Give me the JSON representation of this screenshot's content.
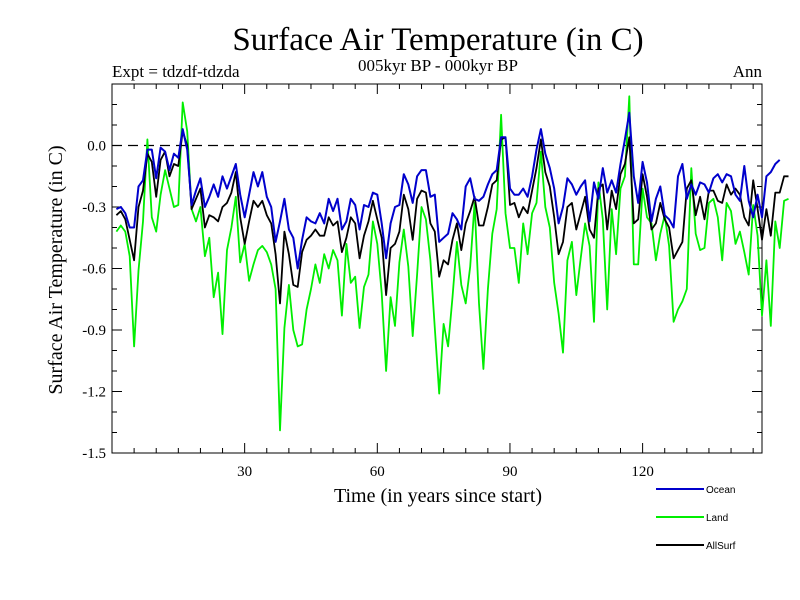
{
  "colors": {
    "ocean": "#0000cc",
    "land": "#00ee00",
    "allsurf": "#000000",
    "axis": "#000000",
    "zero_line": "#000000"
  },
  "chart_data": {
    "type": "line",
    "title": "Surface Air Temperature (in C)",
    "subtitle_left": "Expt = tdzdf-tdzda",
    "subtitle_center": "005kyr BP - 000kyr BP",
    "subtitle_right": "Ann",
    "xlabel": "Time (in years since start)",
    "ylabel": "Surface Air Temperature (in C)",
    "xlim": [
      0,
      147
    ],
    "ylim": [
      -1.5,
      0.3
    ],
    "xticks": [
      30,
      60,
      90,
      120
    ],
    "xtick_labels": [
      "30",
      "60",
      "90",
      "120"
    ],
    "yticks": [
      -1.5,
      -1.2,
      -0.9,
      -0.6,
      -0.3,
      0.0
    ],
    "ytick_labels": [
      "-1.5",
      "-1.2",
      "-0.9",
      "-0.6",
      "-0.3",
      "0.0"
    ],
    "reference_line": 0.0,
    "series": [
      {
        "name": "Ocean",
        "color_key": "ocean",
        "values": [
          -0.31,
          -0.3,
          -0.33,
          -0.4,
          -0.4,
          -0.2,
          -0.17,
          -0.02,
          -0.02,
          -0.16,
          -0.01,
          -0.03,
          -0.12,
          -0.04,
          -0.06,
          0.08,
          -0.02,
          -0.29,
          -0.22,
          -0.16,
          -0.3,
          -0.25,
          -0.19,
          -0.25,
          -0.15,
          -0.21,
          -0.15,
          -0.09,
          -0.24,
          -0.35,
          -0.24,
          -0.13,
          -0.2,
          -0.13,
          -0.25,
          -0.3,
          -0.47,
          -0.37,
          -0.26,
          -0.41,
          -0.45,
          -0.6,
          -0.46,
          -0.35,
          -0.37,
          -0.38,
          -0.33,
          -0.38,
          -0.26,
          -0.32,
          -0.26,
          -0.41,
          -0.37,
          -0.26,
          -0.29,
          -0.41,
          -0.29,
          -0.3,
          -0.23,
          -0.24,
          -0.38,
          -0.55,
          -0.38,
          -0.3,
          -0.29,
          -0.14,
          -0.19,
          -0.28,
          -0.15,
          -0.12,
          -0.12,
          -0.25,
          -0.24,
          -0.47,
          -0.45,
          -0.43,
          -0.33,
          -0.36,
          -0.41,
          -0.2,
          -0.16,
          -0.26,
          -0.27,
          -0.25,
          -0.19,
          -0.14,
          -0.12,
          0.04,
          0.04,
          -0.21,
          -0.24,
          -0.24,
          -0.21,
          -0.25,
          -0.15,
          -0.02,
          0.08,
          -0.04,
          -0.11,
          -0.21,
          -0.38,
          -0.3,
          -0.16,
          -0.19,
          -0.24,
          -0.2,
          -0.17,
          -0.37,
          -0.18,
          -0.26,
          -0.11,
          -0.23,
          -0.17,
          -0.23,
          -0.09,
          0.03,
          0.16,
          -0.15,
          -0.28,
          -0.08,
          -0.18,
          -0.37,
          -0.26,
          -0.2,
          -0.34,
          -0.36,
          -0.4,
          -0.15,
          -0.09,
          -0.26,
          -0.19,
          -0.24,
          -0.18,
          -0.19,
          -0.23,
          -0.16,
          -0.14,
          -0.18,
          -0.14,
          -0.15,
          -0.24,
          -0.27,
          -0.1,
          -0.27,
          -0.35,
          -0.24,
          -0.35,
          -0.15,
          -0.13,
          -0.09,
          -0.07
        ],
        "stroke_width": 2
      },
      {
        "name": "Land",
        "color_key": "land",
        "values": [
          -0.42,
          -0.39,
          -0.42,
          -0.54,
          -0.98,
          -0.61,
          -0.37,
          0.03,
          -0.35,
          -0.42,
          -0.24,
          -0.12,
          -0.21,
          -0.3,
          -0.29,
          0.21,
          0.07,
          -0.31,
          -0.37,
          -0.3,
          -0.54,
          -0.45,
          -0.74,
          -0.62,
          -0.92,
          -0.51,
          -0.4,
          -0.25,
          -0.57,
          -0.48,
          -0.66,
          -0.58,
          -0.51,
          -0.49,
          -0.52,
          -0.58,
          -0.7,
          -1.39,
          -0.89,
          -0.68,
          -0.9,
          -0.98,
          -0.97,
          -0.8,
          -0.7,
          -0.58,
          -0.67,
          -0.53,
          -0.6,
          -0.51,
          -0.56,
          -0.83,
          -0.48,
          -0.67,
          -0.64,
          -0.89,
          -0.69,
          -0.63,
          -0.37,
          -0.48,
          -0.72,
          -1.1,
          -0.74,
          -0.88,
          -0.57,
          -0.41,
          -0.59,
          -0.93,
          -0.63,
          -0.3,
          -0.36,
          -0.56,
          -0.89,
          -1.21,
          -0.87,
          -0.98,
          -0.74,
          -0.47,
          -0.68,
          -0.77,
          -0.59,
          -0.28,
          -0.77,
          -1.09,
          -0.7,
          -0.43,
          -0.31,
          0.15,
          -0.33,
          -0.5,
          -0.5,
          -0.67,
          -0.38,
          -0.53,
          -0.33,
          -0.28,
          -0.03,
          -0.3,
          -0.4,
          -0.67,
          -0.82,
          -1.01,
          -0.56,
          -0.47,
          -0.73,
          -0.55,
          -0.38,
          -0.49,
          -0.86,
          -0.18,
          -0.36,
          -0.8,
          -0.31,
          -0.53,
          -0.21,
          -0.15,
          0.24,
          -0.58,
          -0.58,
          -0.21,
          -0.35,
          -0.38,
          -0.56,
          -0.43,
          -0.34,
          -0.49,
          -0.86,
          -0.8,
          -0.76,
          -0.7,
          -0.11,
          -0.43,
          -0.51,
          -0.5,
          -0.28,
          -0.26,
          -0.35,
          -0.56,
          -0.28,
          -0.32,
          -0.48,
          -0.42,
          -0.52,
          -0.63,
          -0.29,
          -0.44,
          -0.83,
          -0.56,
          -0.88,
          -0.37,
          -0.5,
          -0.27,
          -0.26
        ]
      },
      {
        "name": "AllSurf",
        "color_key": "allsurf",
        "values": [
          -0.34,
          -0.32,
          -0.36,
          -0.46,
          -0.56,
          -0.3,
          -0.22,
          -0.04,
          -0.08,
          -0.25,
          -0.07,
          -0.03,
          -0.15,
          -0.09,
          -0.1,
          0.07,
          0.0,
          -0.31,
          -0.26,
          -0.21,
          -0.4,
          -0.34,
          -0.35,
          -0.37,
          -0.3,
          -0.28,
          -0.23,
          -0.13,
          -0.35,
          -0.48,
          -0.37,
          -0.27,
          -0.3,
          -0.27,
          -0.34,
          -0.38,
          -0.53,
          -0.77,
          -0.42,
          -0.53,
          -0.68,
          -0.69,
          -0.52,
          -0.46,
          -0.44,
          -0.41,
          -0.44,
          -0.44,
          -0.35,
          -0.39,
          -0.37,
          -0.52,
          -0.45,
          -0.35,
          -0.38,
          -0.55,
          -0.44,
          -0.37,
          -0.27,
          -0.36,
          -0.45,
          -0.73,
          -0.5,
          -0.48,
          -0.42,
          -0.24,
          -0.31,
          -0.46,
          -0.26,
          -0.22,
          -0.23,
          -0.38,
          -0.42,
          -0.64,
          -0.56,
          -0.58,
          -0.46,
          -0.38,
          -0.51,
          -0.38,
          -0.32,
          -0.25,
          -0.39,
          -0.39,
          -0.3,
          -0.19,
          -0.17,
          0.03,
          0.04,
          -0.29,
          -0.28,
          -0.35,
          -0.3,
          -0.33,
          -0.22,
          -0.11,
          0.03,
          -0.13,
          -0.2,
          -0.35,
          -0.53,
          -0.47,
          -0.3,
          -0.28,
          -0.41,
          -0.33,
          -0.25,
          -0.41,
          -0.45,
          -0.21,
          -0.19,
          -0.41,
          -0.22,
          -0.31,
          -0.14,
          -0.09,
          0.04,
          -0.38,
          -0.36,
          -0.14,
          -0.25,
          -0.41,
          -0.38,
          -0.28,
          -0.36,
          -0.4,
          -0.55,
          -0.51,
          -0.47,
          -0.21,
          -0.17,
          -0.34,
          -0.25,
          -0.36,
          -0.22,
          -0.22,
          -0.27,
          -0.28,
          -0.19,
          -0.24,
          -0.21,
          -0.24,
          -0.35,
          -0.39,
          -0.17,
          -0.31,
          -0.46,
          -0.31,
          -0.44,
          -0.23,
          -0.23,
          -0.15,
          -0.15
        ]
      }
    ],
    "legend_placement": "bottom-right"
  }
}
